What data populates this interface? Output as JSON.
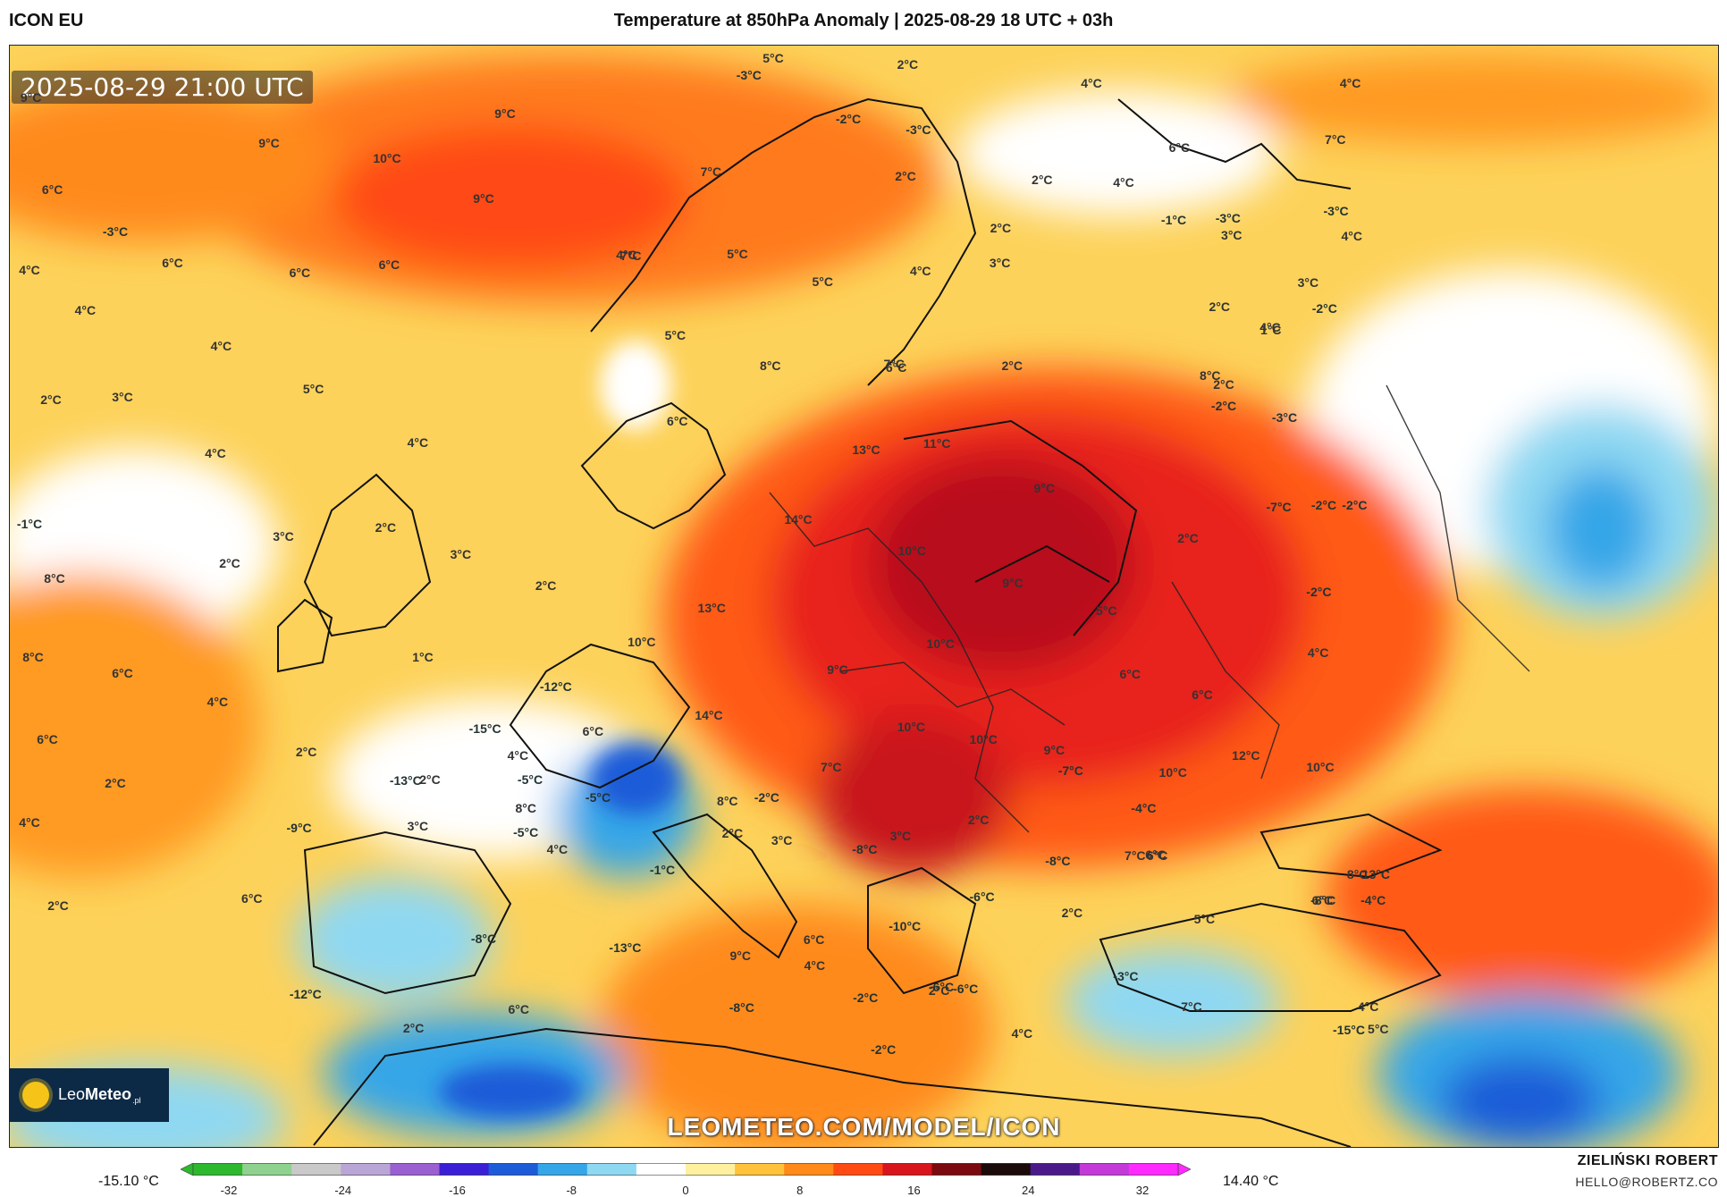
{
  "header": {
    "model": "ICON EU",
    "title": "Temperature at 850hPa Anomaly | 2025-08-29 18 UTC + 03h"
  },
  "map": {
    "timestamp": "2025-08-29 21:00 UTC",
    "watermark": "LEOMETEO.COM/MODEL/ICON",
    "logo": {
      "prefix": "Leo",
      "bold": "Meteo",
      "suffix": ".pl"
    },
    "labels": [
      {
        "t": "9°C"
      },
      {
        "t": "10°C"
      },
      {
        "t": "9°C"
      },
      {
        "t": "9°C"
      },
      {
        "t": "9°C"
      },
      {
        "t": "6°C"
      },
      {
        "t": "-3°C"
      },
      {
        "t": "4°C"
      },
      {
        "t": "6°C"
      },
      {
        "t": "6°C"
      },
      {
        "t": "6°C"
      },
      {
        "t": "4°C"
      },
      {
        "t": "4°C"
      },
      {
        "t": "2°C"
      },
      {
        "t": "3°C"
      },
      {
        "t": "5°C"
      },
      {
        "t": "4°C"
      },
      {
        "t": "4°C"
      },
      {
        "t": "-1°C"
      },
      {
        "t": "3°C"
      },
      {
        "t": "2°C"
      },
      {
        "t": "2°C"
      },
      {
        "t": "3°C"
      },
      {
        "t": "8°C"
      },
      {
        "t": "8°C"
      },
      {
        "t": "6°C"
      },
      {
        "t": "4°C"
      },
      {
        "t": "6°C"
      },
      {
        "t": "2°C"
      },
      {
        "t": "4°C"
      },
      {
        "t": "2°C"
      },
      {
        "t": "1°C"
      },
      {
        "t": "2°C"
      },
      {
        "t": "5°C"
      },
      {
        "t": "-3°C"
      },
      {
        "t": "4°C"
      },
      {
        "t": "4°C"
      },
      {
        "t": "6°C"
      },
      {
        "t": "7°C"
      },
      {
        "t": "7°C"
      },
      {
        "t": "7°C"
      },
      {
        "t": "5°C"
      },
      {
        "t": "5°C"
      },
      {
        "t": "6°C"
      },
      {
        "t": "8°C"
      },
      {
        "t": "4°C"
      },
      {
        "t": "5°C"
      },
      {
        "t": "4°C"
      },
      {
        "t": "2°C"
      },
      {
        "t": "-2°C"
      },
      {
        "t": "-3°C"
      },
      {
        "t": "-3°C"
      },
      {
        "t": "2°C"
      },
      {
        "t": "8°C"
      },
      {
        "t": "4°C"
      },
      {
        "t": "2°C"
      },
      {
        "t": "3°C"
      },
      {
        "t": "6°C"
      },
      {
        "t": "2°C"
      },
      {
        "t": "-1°C"
      },
      {
        "t": "3°C"
      },
      {
        "t": "-3°C"
      },
      {
        "t": "4°C"
      },
      {
        "t": "3°C"
      },
      {
        "t": "4°C"
      },
      {
        "t": "2°C"
      },
      {
        "t": "1°C"
      },
      {
        "t": "-2°C"
      },
      {
        "t": "2°C"
      },
      {
        "t": "7°C"
      },
      {
        "t": "2°C"
      },
      {
        "t": "-2°C"
      },
      {
        "t": "-3°C"
      },
      {
        "t": "-2°C"
      },
      {
        "t": "-7°C"
      },
      {
        "t": "-2°C"
      },
      {
        "t": "2°C"
      },
      {
        "t": "-2°C"
      },
      {
        "t": "13°C"
      },
      {
        "t": "11°C"
      },
      {
        "t": "14°C"
      },
      {
        "t": "10°C"
      },
      {
        "t": "9°C"
      },
      {
        "t": "9°C"
      },
      {
        "t": "13°C"
      },
      {
        "t": "10°C"
      },
      {
        "t": "10°C"
      },
      {
        "t": "9°C"
      },
      {
        "t": "14°C"
      },
      {
        "t": "10°C"
      },
      {
        "t": "10°C"
      },
      {
        "t": "5°C"
      },
      {
        "t": "4°C"
      },
      {
        "t": "6°C"
      },
      {
        "t": "6°C"
      },
      {
        "t": "-12°C"
      },
      {
        "t": "-15°C"
      },
      {
        "t": "6°C"
      },
      {
        "t": "4°C"
      },
      {
        "t": "-13°C"
      },
      {
        "t": "2°C"
      },
      {
        "t": "2°C"
      },
      {
        "t": "-9°C"
      },
      {
        "t": "3°C"
      },
      {
        "t": "-5°C"
      },
      {
        "t": "4°C"
      },
      {
        "t": "-5°C"
      },
      {
        "t": "8°C"
      },
      {
        "t": "8°C"
      },
      {
        "t": "-2°C"
      },
      {
        "t": "7°C"
      },
      {
        "t": "9°C"
      },
      {
        "t": "-7°C"
      },
      {
        "t": "10°C"
      },
      {
        "t": "12°C"
      },
      {
        "t": "10°C"
      },
      {
        "t": "-4°C"
      },
      {
        "t": "6°C"
      },
      {
        "t": "2°C"
      },
      {
        "t": "3°C"
      },
      {
        "t": "-8°C"
      },
      {
        "t": "6°C"
      },
      {
        "t": "7°C"
      },
      {
        "t": "8°C"
      },
      {
        "t": "2°C"
      },
      {
        "t": "3°C"
      },
      {
        "t": "-5°C"
      },
      {
        "t": "6°C"
      },
      {
        "t": "-1°C"
      },
      {
        "t": "-8°C"
      },
      {
        "t": "-6°C"
      },
      {
        "t": "-10°C"
      },
      {
        "t": "2°C"
      },
      {
        "t": "5°C"
      },
      {
        "t": "-8°C"
      },
      {
        "t": "-13°C"
      },
      {
        "t": "9°C"
      },
      {
        "t": "6°C"
      },
      {
        "t": "6°C"
      },
      {
        "t": "-8°C"
      },
      {
        "t": "-12°C"
      },
      {
        "t": "-2°C"
      },
      {
        "t": "-6°C"
      },
      {
        "t": "-3°C"
      },
      {
        "t": "7°C"
      },
      {
        "t": "-13°C"
      },
      {
        "t": "4°C"
      },
      {
        "t": "6°C"
      },
      {
        "t": "-8°C"
      },
      {
        "t": "4°C"
      },
      {
        "t": "-4°C"
      },
      {
        "t": "2°C"
      },
      {
        "t": "4°C"
      },
      {
        "t": "2°C"
      },
      {
        "t": "-15°C"
      },
      {
        "t": "5°C"
      },
      {
        "t": "-2°C"
      },
      {
        "t": "-6°C"
      }
    ]
  },
  "colorbar": {
    "min_label": "-15.10 °C",
    "max_label": "14.40 °C",
    "ticks": [
      "-32",
      "-24",
      "-16",
      "-8",
      "0",
      "8",
      "16",
      "24",
      "32"
    ],
    "colors": [
      "#2db82d",
      "#8fd18f",
      "#c9c9c9",
      "#b9a6d6",
      "#9a5fd0",
      "#3b1fd6",
      "#1d5bd8",
      "#35a6e8",
      "#8fd8f2",
      "#ffffff",
      "#fff0a0",
      "#ffc23a",
      "#ff8a1a",
      "#ff4a14",
      "#d8141c",
      "#7a0a0f",
      "#1a0a0a",
      "#4a1a8a",
      "#c43ad8",
      "#ff2aff"
    ]
  },
  "credits": {
    "author": "ZIELIŃSKI ROBERT",
    "email": "HELLO@ROBERTZ.CO"
  }
}
